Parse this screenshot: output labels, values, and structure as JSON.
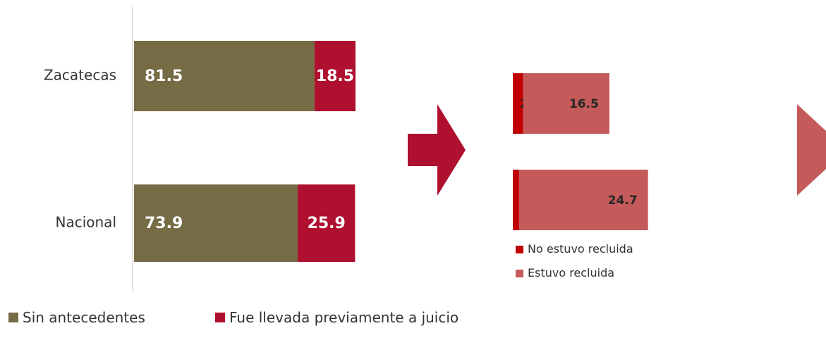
{
  "chart_data": [
    {
      "type": "stacked_bar_horizontal",
      "categories": [
        "Zacatecas",
        "Nacional"
      ],
      "series": [
        {
          "name": "Sin antecedentes",
          "color": "#756c45",
          "values": [
            81.5,
            73.9
          ]
        },
        {
          "name": "Fue llevada previamente a juicio",
          "color": "#b0102f",
          "values": [
            18.5,
            25.9
          ]
        }
      ],
      "xlim": [
        0,
        100
      ]
    },
    {
      "type": "stacked_bar_horizontal",
      "categories": [
        null,
        null
      ],
      "series": [
        {
          "name": "No estuvo recluida",
          "color": "#c00000",
          "values": [
            2.0,
            1.2
          ],
          "value_labels": [
            "2.0",
            "1.2"
          ]
        },
        {
          "name": "Estuvo recluida",
          "color": "#c55a5a",
          "values": [
            16.5,
            24.7
          ]
        }
      ],
      "xlim": [
        0,
        30
      ]
    }
  ]
}
